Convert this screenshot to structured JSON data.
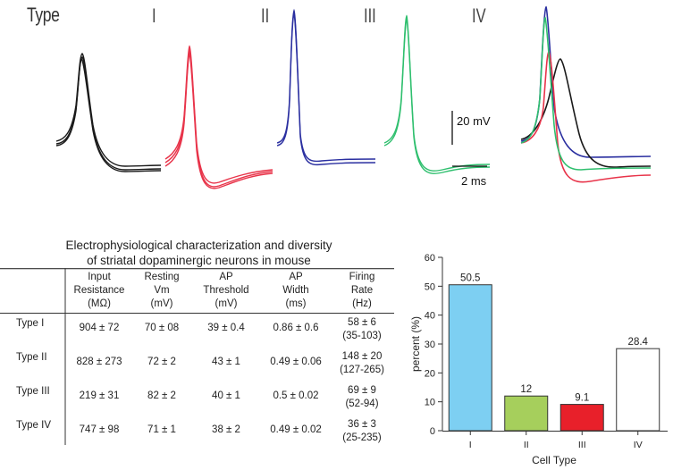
{
  "figure": {
    "type_label": "Type",
    "panels": [
      {
        "label": "I",
        "color": "#1a1a1a"
      },
      {
        "label": "II",
        "color": "#e8344a"
      },
      {
        "label": "III",
        "color": "#2a2fa0"
      },
      {
        "label": "IV",
        "color": "#2fbf6e"
      }
    ],
    "scale_v": "20 mV",
    "scale_t": "2 ms"
  },
  "table": {
    "title_line1": "Electrophysiological characterization and diversity",
    "title_line2": "of striatal dopaminergic neurons in mouse",
    "headers": [
      [
        "Input",
        "Resistance",
        "(MΩ)"
      ],
      [
        "Resting",
        "Vm",
        "(mV)"
      ],
      [
        "AP",
        "Threshold",
        "(mV)"
      ],
      [
        "AP",
        "Width",
        "(ms)"
      ],
      [
        "Firing",
        "Rate",
        "(Hz)"
      ]
    ],
    "rows": [
      {
        "label": "Type I",
        "values": [
          "904 ± 72",
          "70 ± 08",
          "39 ± 0.4",
          "0.86 ± 0.6",
          "58 ± 6"
        ],
        "extra": "(35-103)"
      },
      {
        "label": "Type II",
        "values": [
          "828 ± 273",
          "72 ± 2",
          "43 ± 1",
          "0.49 ± 0.06",
          "148 ± 20"
        ],
        "extra": "(127-265)"
      },
      {
        "label": "Type III",
        "values": [
          "219 ± 31",
          "82 ± 2",
          "40 ± 1",
          "0.5 ± 0.02",
          "69 ± 9"
        ],
        "extra": "(52-94)"
      },
      {
        "label": "Type IV",
        "values": [
          "747 ± 98",
          "71 ± 1",
          "38 ± 2",
          "0.49 ± 0.02",
          "36 ± 3"
        ],
        "extra": "(25-235)"
      }
    ]
  },
  "chart_data": {
    "type": "bar",
    "categories": [
      "I",
      "II",
      "III",
      "IV"
    ],
    "values": [
      50.5,
      12,
      9.1,
      28.4
    ],
    "value_labels": [
      "50.5",
      "12",
      "9.1",
      "28.4"
    ],
    "colors": [
      "#7dcff2",
      "#a6cf5c",
      "#e8202a",
      "#ffffff"
    ],
    "xlabel": "Cell Type",
    "ylabel": "percent (%)",
    "ylim": [
      0,
      60
    ],
    "yticks": [
      "0",
      "10",
      "20",
      "30",
      "40",
      "50",
      "60"
    ],
    "grid": false
  }
}
